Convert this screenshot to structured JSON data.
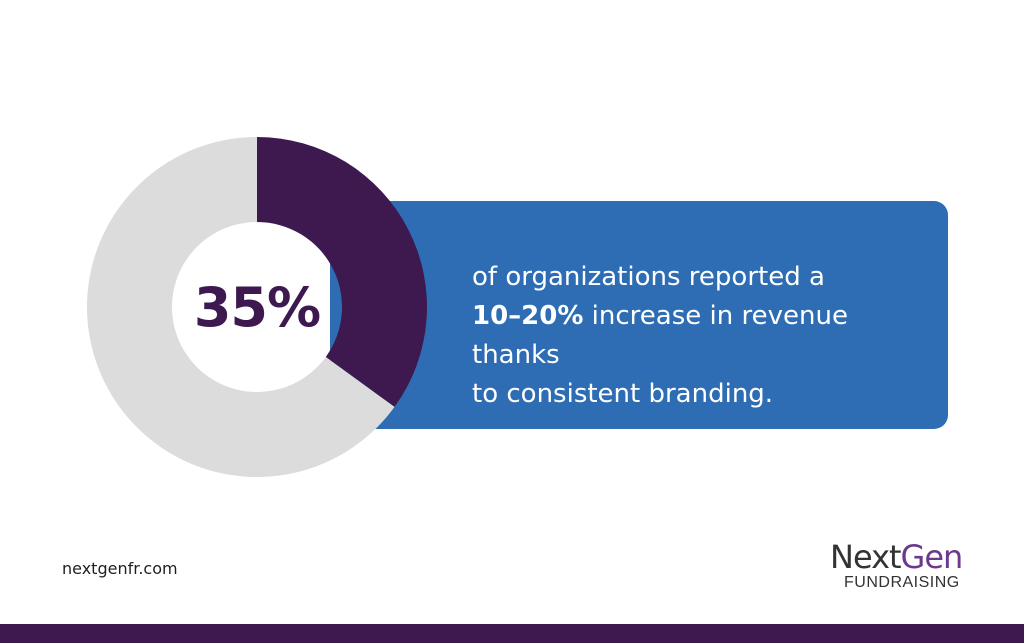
{
  "chart_data": {
    "type": "pie",
    "variant": "donut",
    "center_label": "35%",
    "slices": [
      {
        "value": 35,
        "color": "#3d1950"
      },
      {
        "value": 65,
        "color": "#dcdcdc"
      }
    ]
  },
  "callout": {
    "line1": "of organizations reported a",
    "highlight": "10–20%",
    "line2_rest": " increase in revenue thanks",
    "line3": "to consistent branding."
  },
  "footer": {
    "website": "nextgenfr.com",
    "logo_part1": "Next",
    "logo_part2": "Gen",
    "logo_sub": "FUNDRAISING"
  },
  "colors": {
    "accent": "#3d1950",
    "callout_bg": "#2e6db4",
    "remainder": "#dcdcdc"
  }
}
